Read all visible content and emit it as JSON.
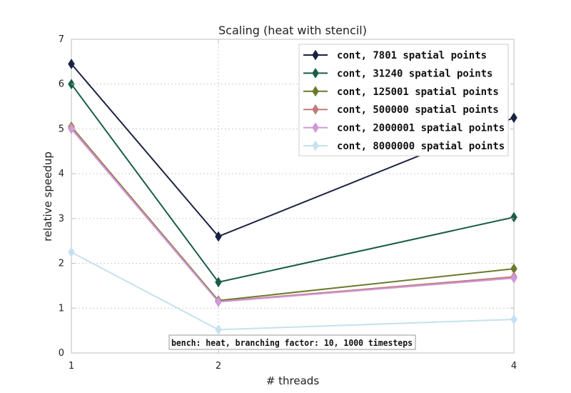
{
  "chart_data": {
    "type": "line",
    "title": "Scaling (heat with stencil)",
    "xlabel": "# threads",
    "ylabel": "relative speedup",
    "x": [
      1,
      2,
      4
    ],
    "x_ticks": [
      "1",
      "2",
      "4"
    ],
    "ylim": [
      0,
      7
    ],
    "y_ticks": [
      "0",
      "1",
      "2",
      "3",
      "4",
      "5",
      "6",
      "7"
    ],
    "grid": true,
    "legend_position": "top-right",
    "annotation": "bench: heat, branching factor: 10, 1000 timesteps",
    "series": [
      {
        "name": "cont, 7801 spatial points",
        "color": "#1b2241",
        "values": [
          6.45,
          2.6,
          5.25
        ]
      },
      {
        "name": "cont, 31240 spatial points",
        "color": "#1b5e46",
        "values": [
          6.0,
          1.58,
          3.03
        ]
      },
      {
        "name": "cont, 125001 spatial points",
        "color": "#6b7a2e",
        "values": [
          5.05,
          1.17,
          1.88
        ]
      },
      {
        "name": "cont, 500000 spatial points",
        "color": "#c27a7a",
        "values": [
          5.03,
          1.15,
          1.7
        ]
      },
      {
        "name": "cont, 2000001 spatial points",
        "color": "#cf98d8",
        "values": [
          5.0,
          1.14,
          1.67
        ]
      },
      {
        "name": "cont, 8000000 spatial points",
        "color": "#c6e1ef",
        "values": [
          2.25,
          0.52,
          0.75
        ]
      }
    ]
  }
}
